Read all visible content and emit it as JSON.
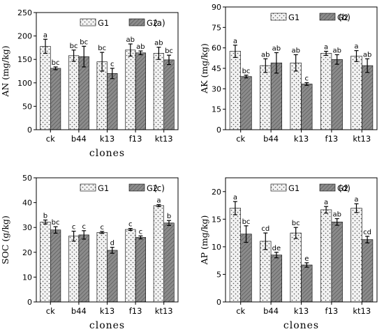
{
  "chart_data": [
    {
      "type": "bar",
      "panel": "(a)",
      "categories": [
        "ck",
        "b44",
        "k13",
        "f13",
        "kt13"
      ],
      "series": [
        {
          "name": "G1",
          "values": [
            178,
            158,
            145,
            170,
            163
          ],
          "errors": [
            15,
            12,
            20,
            13,
            13
          ],
          "labels": [
            "a",
            "bc",
            "bc",
            "ab",
            "ab"
          ]
        },
        {
          "name": "G2",
          "values": [
            131,
            156,
            120,
            164,
            149
          ],
          "errors": [
            3,
            22,
            11,
            4,
            10
          ],
          "labels": [
            "bc",
            "bc",
            "c",
            "ab",
            "bc"
          ]
        }
      ],
      "xlabel": "clones",
      "ylabel": "AN (mg/kg)",
      "ylim": [
        0,
        250
      ],
      "yticks": [
        "0",
        "50",
        "100",
        "150",
        "200",
        "250"
      ],
      "legend_position": "top-center",
      "grid": false
    },
    {
      "type": "bar",
      "panel": "(b)",
      "categories": [
        "ck",
        "b44",
        "k13",
        "f13",
        "kt13"
      ],
      "series": [
        {
          "name": "G1",
          "values": [
            57.5,
            47,
            49,
            56,
            54
          ],
          "errors": [
            4.5,
            5,
            6,
            1.5,
            4
          ],
          "labels": [
            "a",
            "ab",
            "ab",
            "a",
            "a"
          ]
        },
        {
          "name": "G2",
          "values": [
            39,
            49,
            33.5,
            51.5,
            47
          ],
          "errors": [
            1,
            7.5,
            1,
            3.5,
            5
          ],
          "labels": [
            "bc",
            "ab",
            "c",
            "ab",
            "ab"
          ]
        }
      ],
      "xlabel": "",
      "ylabel": "AK (mg/kg)",
      "ylim": [
        0,
        90
      ],
      "yticks": [
        "0",
        "15",
        "30",
        "45",
        "60",
        "75",
        "90"
      ],
      "legend_position": "top-center",
      "grid": false
    },
    {
      "type": "bar",
      "panel": "(c)",
      "categories": [
        "ck",
        "b44",
        "k13",
        "f13",
        "kt13"
      ],
      "series": [
        {
          "name": "G1",
          "values": [
            32.2,
            26.5,
            28.0,
            29.2,
            38.8
          ],
          "errors": [
            0.8,
            2.0,
            0.4,
            0.4,
            0.4
          ],
          "labels": [
            "b",
            "c",
            "c",
            "c",
            "a"
          ]
        },
        {
          "name": "G2",
          "values": [
            29.0,
            27.0,
            20.8,
            26.0,
            31.8
          ],
          "errors": [
            1.3,
            1.7,
            1.2,
            0.6,
            1.0
          ],
          "labels": [
            "bc",
            "c",
            "d",
            "c",
            "b"
          ]
        }
      ],
      "xlabel": "clones",
      "ylabel": "SOC (g/kg)",
      "ylim": [
        0,
        50
      ],
      "yticks": [
        "0",
        "10",
        "20",
        "30",
        "40",
        "50"
      ],
      "legend_position": "top-center",
      "grid": false
    },
    {
      "type": "bar",
      "panel": "(d)",
      "categories": [
        "ck",
        "b44",
        "k13",
        "f13",
        "kt13"
      ],
      "series": [
        {
          "name": "G1",
          "values": [
            17.0,
            11.0,
            12.5,
            16.7,
            17.0
          ],
          "errors": [
            1.2,
            1.5,
            1.0,
            0.6,
            0.8
          ],
          "labels": [
            "a",
            "cd",
            "bc",
            "a",
            "a"
          ]
        },
        {
          "name": "G2",
          "values": [
            12.3,
            8.5,
            6.7,
            14.5,
            11.3
          ],
          "errors": [
            1.5,
            0.5,
            0.4,
            0.6,
            0.6
          ],
          "labels": [
            "bc",
            "de",
            "e",
            "ab",
            "cd"
          ]
        }
      ],
      "xlabel": "clones",
      "ylabel": "AP (mg/kg)",
      "ylim": [
        0,
        22.5
      ],
      "yticks": [
        "0",
        "5",
        "10",
        "15",
        "20"
      ],
      "legend_position": "top-center",
      "grid": false
    }
  ],
  "colors": {
    "g1_fill": "#f2f2f2",
    "g1_dots": "#555555",
    "g2_fill": "#8c8c8c",
    "g2_stripes": "#5a5a5a",
    "axis": "#000000"
  }
}
